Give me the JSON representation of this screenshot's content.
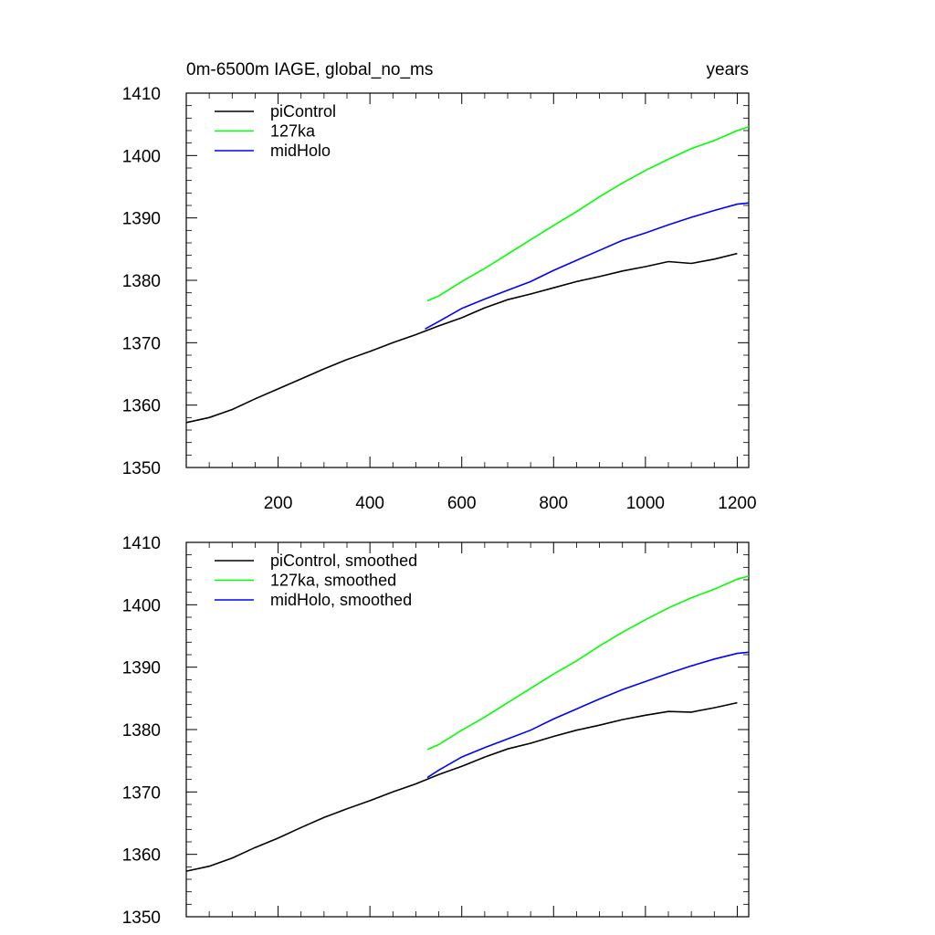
{
  "chart_data": [
    {
      "type": "line",
      "title": "0m-6500m IAGE, global_no_ms",
      "title_right": "years",
      "xlabel": "",
      "ylabel": "",
      "xlim": [
        0,
        1225
      ],
      "ylim": [
        1350,
        1410
      ],
      "x_ticks": [
        200,
        400,
        600,
        800,
        1000,
        1200
      ],
      "y_ticks": [
        1350,
        1360,
        1370,
        1380,
        1390,
        1400,
        1410
      ],
      "grid": false,
      "legend_position": "top-left",
      "series": [
        {
          "name": "piControl",
          "color": "#000000",
          "x": [
            0,
            50,
            100,
            150,
            200,
            250,
            300,
            350,
            400,
            450,
            500,
            550,
            600,
            650,
            700,
            750,
            800,
            850,
            900,
            950,
            1000,
            1050,
            1100,
            1150,
            1200
          ],
          "y": [
            1357.2,
            1358.0,
            1359.3,
            1361.0,
            1362.6,
            1364.2,
            1365.8,
            1367.3,
            1368.6,
            1370.0,
            1371.3,
            1372.7,
            1374.0,
            1375.6,
            1376.9,
            1377.8,
            1378.8,
            1379.8,
            1380.6,
            1381.5,
            1382.2,
            1383.0,
            1382.7,
            1383.4,
            1384.3
          ]
        },
        {
          "name": "127ka",
          "color": "#00ff00",
          "x": [
            525,
            550,
            600,
            650,
            700,
            750,
            800,
            850,
            900,
            950,
            1000,
            1050,
            1100,
            1150,
            1200,
            1225
          ],
          "y": [
            1376.7,
            1377.5,
            1379.8,
            1381.9,
            1384.2,
            1386.5,
            1388.8,
            1391.0,
            1393.4,
            1395.6,
            1397.6,
            1399.4,
            1401.1,
            1402.4,
            1404.0,
            1404.6
          ]
        },
        {
          "name": "midHolo",
          "color": "#0000ff",
          "x": [
            520,
            550,
            600,
            650,
            700,
            750,
            800,
            850,
            900,
            950,
            1000,
            1050,
            1100,
            1150,
            1200,
            1225
          ],
          "y": [
            1372.2,
            1373.4,
            1375.5,
            1377.0,
            1378.4,
            1379.8,
            1381.6,
            1383.2,
            1384.8,
            1386.4,
            1387.6,
            1388.9,
            1390.1,
            1391.2,
            1392.2,
            1392.4
          ]
        }
      ]
    },
    {
      "type": "line",
      "xlim": [
        0,
        1225
      ],
      "ylim": [
        1350,
        1410
      ],
      "y_ticks": [
        1350,
        1360,
        1370,
        1380,
        1390,
        1400,
        1410
      ],
      "grid": false,
      "legend_position": "top-left",
      "series": [
        {
          "name": "piControl, smoothed",
          "color": "#000000",
          "x": [
            0,
            50,
            100,
            150,
            200,
            250,
            300,
            350,
            400,
            450,
            500,
            550,
            600,
            650,
            700,
            750,
            800,
            850,
            900,
            950,
            1000,
            1050,
            1100,
            1150,
            1200
          ],
          "y": [
            1357.3,
            1358.1,
            1359.4,
            1361.1,
            1362.6,
            1364.3,
            1365.9,
            1367.3,
            1368.6,
            1370.0,
            1371.3,
            1372.8,
            1374.1,
            1375.6,
            1376.9,
            1377.8,
            1378.9,
            1379.9,
            1380.7,
            1381.6,
            1382.3,
            1382.9,
            1382.8,
            1383.5,
            1384.3
          ]
        },
        {
          "name": "127ka, smoothed",
          "color": "#00ff00",
          "x": [
            525,
            550,
            600,
            650,
            700,
            750,
            800,
            850,
            900,
            950,
            1000,
            1050,
            1100,
            1150,
            1200,
            1225
          ],
          "y": [
            1376.8,
            1377.6,
            1379.9,
            1382.0,
            1384.3,
            1386.6,
            1388.9,
            1391.0,
            1393.4,
            1395.6,
            1397.6,
            1399.5,
            1401.1,
            1402.5,
            1404.1,
            1404.6
          ]
        },
        {
          "name": "midHolo, smoothed",
          "color": "#0000ff",
          "x": [
            525,
            550,
            600,
            650,
            700,
            750,
            800,
            850,
            900,
            950,
            1000,
            1050,
            1100,
            1150,
            1200,
            1225
          ],
          "y": [
            1372.3,
            1373.5,
            1375.6,
            1377.1,
            1378.5,
            1379.9,
            1381.7,
            1383.3,
            1384.9,
            1386.4,
            1387.7,
            1389.0,
            1390.2,
            1391.3,
            1392.2,
            1392.4
          ]
        }
      ]
    }
  ]
}
